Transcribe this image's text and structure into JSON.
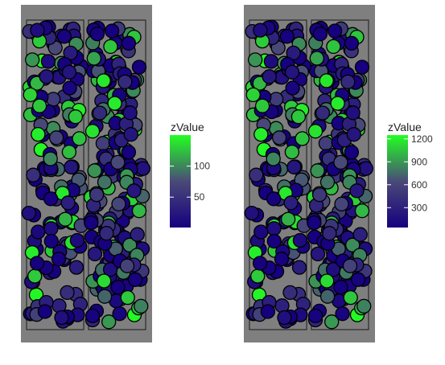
{
  "chart_data": [
    {
      "type": "scatter",
      "title": "",
      "xlabel": "",
      "ylabel": "",
      "background_color": "#7f7f7f",
      "frame_color": "#1a1a1a",
      "point_outline_color": "#000000",
      "grid": false,
      "legend": {
        "title": "zValue",
        "placement": "right",
        "gradient_low": "#16007f",
        "gradient_mid": "#4a4a78",
        "gradient_high": "#22ff22",
        "range": [
          1,
          150
        ],
        "ticks": [
          "50",
          "100"
        ],
        "tick_values": [
          50,
          100
        ]
      },
      "xlim": [
        0,
        1
      ],
      "ylim": [
        0,
        1
      ],
      "blocks": [
        {
          "name": "left-block",
          "xlim": [
            0.0,
            0.48
          ]
        },
        {
          "name": "right-block",
          "xlim": [
            0.52,
            1.0
          ]
        }
      ],
      "point_count": 340,
      "seed": 17,
      "z_distribution": "mostly low (dark blue), few high (green)"
    },
    {
      "type": "scatter",
      "title": "",
      "xlabel": "",
      "ylabel": "",
      "background_color": "#7f7f7f",
      "frame_color": "#1a1a1a",
      "point_outline_color": "#000000",
      "grid": false,
      "legend": {
        "title": "zValue",
        "placement": "right",
        "gradient_low": "#16007f",
        "gradient_mid": "#4a4a78",
        "gradient_high": "#22ff22",
        "range": [
          40,
          1250
        ],
        "ticks": [
          "300",
          "600",
          "900",
          "1200"
        ],
        "tick_values": [
          300,
          600,
          900,
          1200
        ]
      },
      "xlim": [
        0,
        1
      ],
      "ylim": [
        0,
        1
      ],
      "blocks": [
        {
          "name": "left-block",
          "xlim": [
            0.0,
            0.48
          ]
        },
        {
          "name": "right-block",
          "xlim": [
            0.52,
            1.0
          ]
        }
      ],
      "point_count": 340,
      "seed": 17,
      "z_distribution": "mostly low (dark blue), few high (green)"
    }
  ]
}
